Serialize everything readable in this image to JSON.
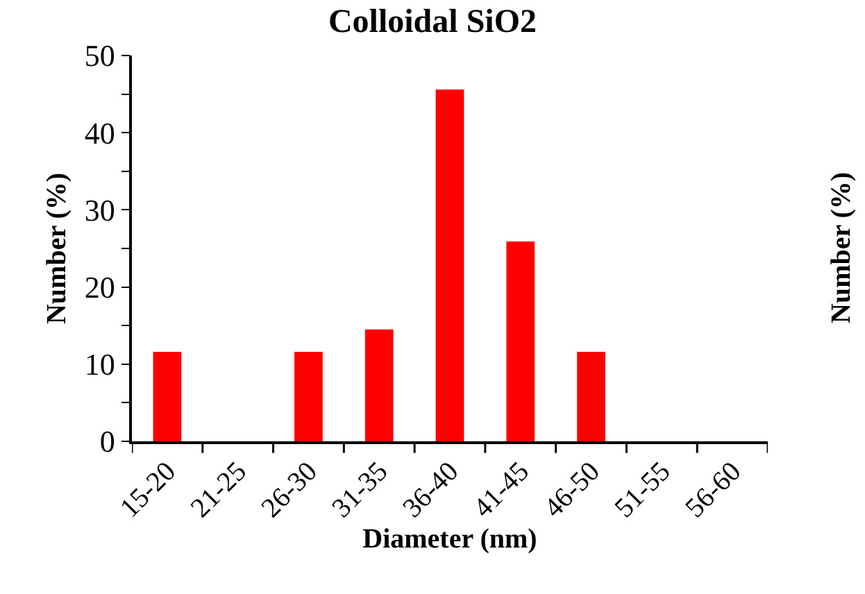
{
  "chart_data": {
    "type": "bar",
    "title": "Colloidal SiO2",
    "xlabel": "Diameter (nm)",
    "ylabel": "Number (%)",
    "categories": [
      "15-20",
      "21-25",
      "26-30",
      "31-35",
      "36-40",
      "41-45",
      "46-50",
      "51-55",
      "56-60"
    ],
    "values": [
      11.6,
      0,
      11.6,
      14.5,
      45.6,
      25.9,
      11.6,
      0,
      0
    ],
    "color": "#ff0000",
    "ylim": [
      0,
      50
    ],
    "yticks": [
      0,
      {
        "value": 5,
        "label": null
      },
      10,
      {
        "value": 15,
        "label": null
      },
      20,
      {
        "value": 25,
        "label": null
      },
      30,
      {
        "value": 35,
        "label": null
      },
      40,
      {
        "value": 45,
        "label": null
      },
      50
    ],
    "legend": false,
    "annotations": [
      "Number (%)"
    ]
  }
}
